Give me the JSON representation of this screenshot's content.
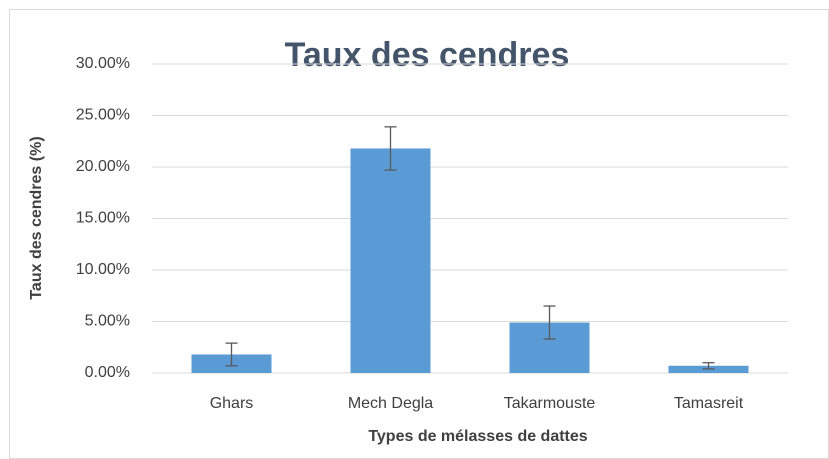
{
  "chart_data": {
    "type": "bar",
    "title": "Taux des cendres",
    "x_label": "Types de mélasses de dattes",
    "y_label": "Taux des cendres (%)",
    "categories": [
      "Ghars",
      "Mech Degla",
      "Takarmouste",
      "Tamasreit"
    ],
    "values": [
      1.8,
      21.8,
      4.9,
      0.7
    ],
    "errors": [
      1.1,
      2.1,
      1.6,
      0.3
    ],
    "color": "#5b9bd5",
    "ylim": [
      0,
      30
    ],
    "yticks": [
      {
        "value": 0,
        "label": "0.00%"
      },
      {
        "value": 5,
        "label": "5.00%"
      },
      {
        "value": 10,
        "label": "10.00%"
      },
      {
        "value": 15,
        "label": "15.00%"
      },
      {
        "value": 20,
        "label": "20.00%"
      },
      {
        "value": 25,
        "label": "25.00%"
      },
      {
        "value": 30,
        "label": "30.00%"
      }
    ],
    "grid": true
  }
}
